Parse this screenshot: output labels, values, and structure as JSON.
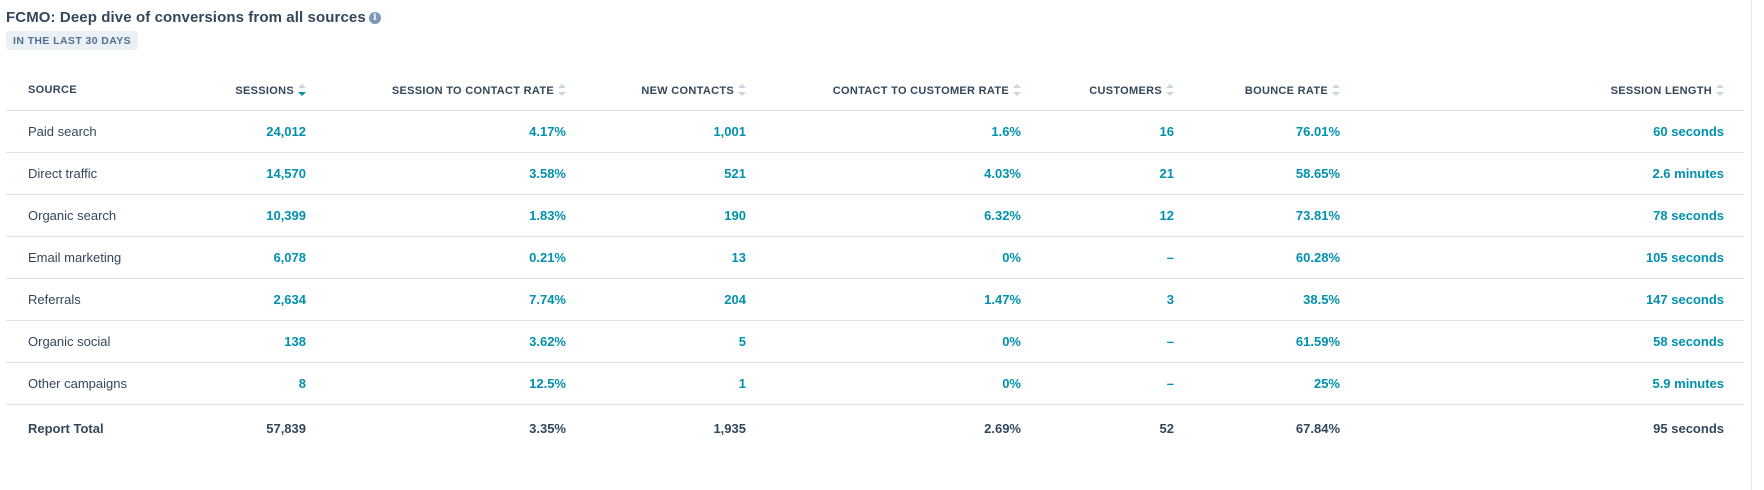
{
  "report": {
    "title": "FCMO: Deep dive of conversions from all sources",
    "info_glyph": "i",
    "date_range": "IN THE LAST 30 DAYS"
  },
  "table": {
    "columns": [
      {
        "label": "SOURCE"
      },
      {
        "label": "SESSIONS"
      },
      {
        "label": "SESSION TO CONTACT RATE"
      },
      {
        "label": "NEW CONTACTS"
      },
      {
        "label": "CONTACT TO CUSTOMER RATE"
      },
      {
        "label": "CUSTOMERS"
      },
      {
        "label": "BOUNCE RATE"
      },
      {
        "label": "SESSION LENGTH"
      }
    ],
    "sorted_column": "SESSIONS",
    "sort_direction": "descending",
    "rows": [
      [
        "Paid search",
        "24,012",
        "4.17%",
        "1,001",
        "1.6%",
        "16",
        "76.01%",
        "60 seconds"
      ],
      [
        "Direct traffic",
        "14,570",
        "3.58%",
        "521",
        "4.03%",
        "21",
        "58.65%",
        "2.6 minutes"
      ],
      [
        "Organic search",
        "10,399",
        "1.83%",
        "190",
        "6.32%",
        "12",
        "73.81%",
        "78 seconds"
      ],
      [
        "Email marketing",
        "6,078",
        "0.21%",
        "13",
        "0%",
        "–",
        "60.28%",
        "105 seconds"
      ],
      [
        "Referrals",
        "2,634",
        "7.74%",
        "204",
        "1.47%",
        "3",
        "38.5%",
        "147 seconds"
      ],
      [
        "Organic social",
        "138",
        "3.62%",
        "5",
        "0%",
        "–",
        "61.59%",
        "58 seconds"
      ],
      [
        "Other campaigns",
        "8",
        "12.5%",
        "1",
        "0%",
        "–",
        "25%",
        "5.9 minutes"
      ]
    ],
    "total": [
      "Report Total",
      "57,839",
      "3.35%",
      "1,935",
      "2.69%",
      "52",
      "67.84%",
      "95 seconds"
    ]
  },
  "colors": {
    "link": "#0091ae",
    "text": "#33475b",
    "badge_bg": "#eaf0f6",
    "border": "#dfe3eb"
  }
}
